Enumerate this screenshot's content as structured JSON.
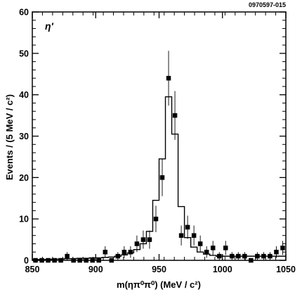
{
  "figure": {
    "reference": "0970597-015"
  },
  "chart_data": {
    "type": "scatter",
    "annotation": "η′",
    "xlabel": "m(ηπ⁰π⁰) (MeV / c²)",
    "ylabel": "Events / (5 MeV / c²)",
    "xlim": [
      850,
      1050
    ],
    "ylim": [
      0,
      60
    ],
    "xticks": [
      850,
      900,
      950,
      1000,
      1050
    ],
    "yticks": [
      0,
      10,
      20,
      30,
      40,
      50,
      60
    ],
    "grid": false,
    "series": [
      {
        "kind": "data-points-with-errors",
        "points": [
          {
            "x": 852.5,
            "y": 0,
            "err": 0
          },
          {
            "x": 857.5,
            "y": 0,
            "err": 0
          },
          {
            "x": 862.5,
            "y": 0,
            "err": 0
          },
          {
            "x": 867.5,
            "y": 0,
            "err": 0
          },
          {
            "x": 872.5,
            "y": 0,
            "err": 0
          },
          {
            "x": 877.5,
            "y": 1,
            "err": 1
          },
          {
            "x": 882.5,
            "y": 0,
            "err": 0
          },
          {
            "x": 887.5,
            "y": 0,
            "err": 0
          },
          {
            "x": 892.5,
            "y": 0,
            "err": 0
          },
          {
            "x": 897.5,
            "y": 0,
            "err": 0
          },
          {
            "x": 902.5,
            "y": 0,
            "err": 0
          },
          {
            "x": 907.5,
            "y": 2,
            "err": 1.4
          },
          {
            "x": 912.5,
            "y": 0,
            "err": 0
          },
          {
            "x": 917.5,
            "y": 1,
            "err": 1
          },
          {
            "x": 922.5,
            "y": 2,
            "err": 1.4
          },
          {
            "x": 927.5,
            "y": 2,
            "err": 1.4
          },
          {
            "x": 932.5,
            "y": 4,
            "err": 2
          },
          {
            "x": 937.5,
            "y": 5,
            "err": 2.2
          },
          {
            "x": 942.5,
            "y": 5,
            "err": 2.2
          },
          {
            "x": 947.5,
            "y": 10,
            "err": 3.2
          },
          {
            "x": 952.5,
            "y": 20,
            "err": 4.5
          },
          {
            "x": 957.5,
            "y": 44,
            "err": 6.6
          },
          {
            "x": 962.5,
            "y": 35,
            "err": 5.9
          },
          {
            "x": 967.5,
            "y": 6,
            "err": 2.4
          },
          {
            "x": 972.5,
            "y": 8,
            "err": 2.8
          },
          {
            "x": 977.5,
            "y": 6,
            "err": 2.4
          },
          {
            "x": 982.5,
            "y": 4,
            "err": 2
          },
          {
            "x": 987.5,
            "y": 2,
            "err": 1.4
          },
          {
            "x": 992.5,
            "y": 3,
            "err": 1.7
          },
          {
            "x": 997.5,
            "y": 1,
            "err": 1
          },
          {
            "x": 1002.5,
            "y": 3,
            "err": 1.7
          },
          {
            "x": 1007.5,
            "y": 1,
            "err": 1
          },
          {
            "x": 1012.5,
            "y": 1,
            "err": 1
          },
          {
            "x": 1017.5,
            "y": 1,
            "err": 1
          },
          {
            "x": 1022.5,
            "y": 0,
            "err": 0
          },
          {
            "x": 1027.5,
            "y": 1,
            "err": 1
          },
          {
            "x": 1032.5,
            "y": 1,
            "err": 1
          },
          {
            "x": 1037.5,
            "y": 1,
            "err": 1
          },
          {
            "x": 1042.5,
            "y": 2,
            "err": 1.4
          },
          {
            "x": 1047.5,
            "y": 3,
            "err": 1.7
          }
        ]
      },
      {
        "kind": "fit-histogram",
        "bin_width": 5,
        "bin_starts": [
          850,
          855,
          860,
          865,
          870,
          875,
          880,
          885,
          890,
          895,
          900,
          905,
          910,
          915,
          920,
          925,
          930,
          935,
          940,
          945,
          950,
          955,
          960,
          965,
          970,
          975,
          980,
          985,
          990,
          995,
          1000,
          1005,
          1010,
          1015,
          1020,
          1025,
          1030,
          1035,
          1040,
          1045
        ],
        "values": [
          0.2,
          0.2,
          0.2,
          0.3,
          0.3,
          0.4,
          0.4,
          0.5,
          0.5,
          0.6,
          0.6,
          0.7,
          0.8,
          1.0,
          1.3,
          1.8,
          2.6,
          4.0,
          7.0,
          14.5,
          24.5,
          39.5,
          30.5,
          13.0,
          5.5,
          3.2,
          2.0,
          1.5,
          1.2,
          1.0,
          1.0,
          1.0,
          1.0,
          1.0,
          1.0,
          1.0,
          1.0,
          1.0,
          1.0,
          1.0
        ]
      }
    ]
  }
}
